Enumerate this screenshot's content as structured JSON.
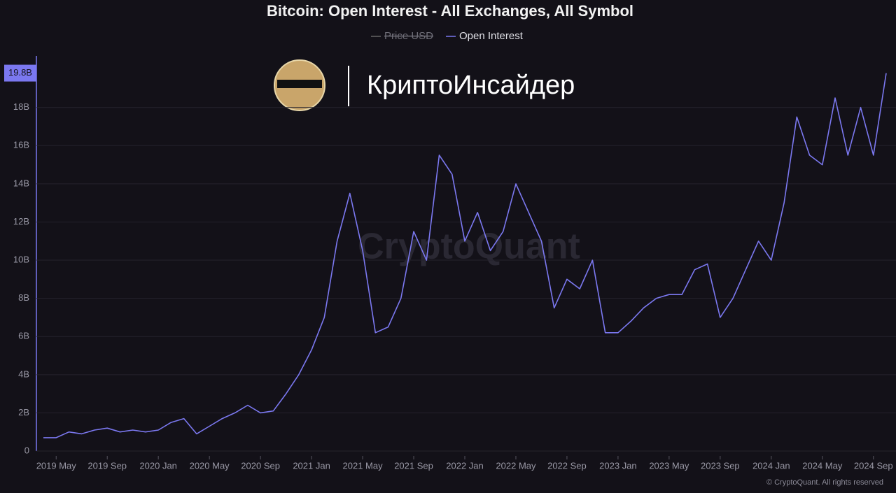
{
  "chart_data": {
    "type": "line",
    "title": "Bitcoin: Open Interest - All Exchanges, All Symbol",
    "watermark": "CryptoQuant",
    "brand": "КриптоИнсайдер",
    "footer": "© CryptoQuant. All rights reserved",
    "x": [
      "2019-04",
      "2019-05",
      "2019-06",
      "2019-07",
      "2019-08",
      "2019-09",
      "2019-10",
      "2019-11",
      "2019-12",
      "2020-01",
      "2020-02",
      "2020-03",
      "2020-04",
      "2020-05",
      "2020-06",
      "2020-07",
      "2020-08",
      "2020-09",
      "2020-10",
      "2020-11",
      "2020-12",
      "2021-01",
      "2021-02",
      "2021-03",
      "2021-04",
      "2021-05",
      "2021-06",
      "2021-07",
      "2021-08",
      "2021-09",
      "2021-10",
      "2021-11",
      "2021-12",
      "2022-01",
      "2022-02",
      "2022-03",
      "2022-04",
      "2022-05",
      "2022-06",
      "2022-07",
      "2022-08",
      "2022-09",
      "2022-10",
      "2022-11",
      "2022-12",
      "2023-01",
      "2023-02",
      "2023-03",
      "2023-04",
      "2023-05",
      "2023-06",
      "2023-07",
      "2023-08",
      "2023-09",
      "2023-10",
      "2023-11",
      "2023-12",
      "2024-01",
      "2024-02",
      "2024-03",
      "2024-04",
      "2024-05",
      "2024-06",
      "2024-07",
      "2024-08",
      "2024-09",
      "2024-10"
    ],
    "series": [
      {
        "name": "Price USD",
        "visible": false,
        "color": "#888888"
      },
      {
        "name": "Open Interest",
        "visible": true,
        "color": "#7b78f0",
        "values": [
          0.7,
          0.7,
          1.0,
          0.9,
          1.1,
          1.2,
          1.0,
          1.1,
          1.0,
          1.1,
          1.5,
          1.7,
          0.9,
          1.3,
          1.7,
          2.0,
          2.4,
          2.0,
          2.1,
          3.0,
          4.0,
          5.3,
          7.0,
          11.0,
          13.5,
          10.5,
          6.2,
          6.5,
          8.0,
          11.5,
          10.0,
          15.5,
          14.5,
          11.0,
          12.5,
          10.5,
          11.5,
          14.0,
          12.5,
          11.0,
          7.5,
          9.0,
          8.5,
          10.0,
          6.2,
          6.2,
          6.8,
          7.5,
          8.0,
          8.2,
          8.2,
          9.5,
          9.8,
          7.0,
          8.0,
          9.5,
          11.0,
          10.0,
          13.0,
          17.5,
          15.5,
          15.0,
          18.5,
          15.5,
          18.0,
          15.5,
          19.8
        ]
      }
    ],
    "xlim": [
      "2019-04",
      "2024-10"
    ],
    "xticks": [
      {
        "value": "2019-05",
        "label": "2019 May"
      },
      {
        "value": "2019-09",
        "label": "2019 Sep"
      },
      {
        "value": "2020-01",
        "label": "2020 Jan"
      },
      {
        "value": "2020-05",
        "label": "2020 May"
      },
      {
        "value": "2020-09",
        "label": "2020 Sep"
      },
      {
        "value": "2021-01",
        "label": "2021 Jan"
      },
      {
        "value": "2021-05",
        "label": "2021 May"
      },
      {
        "value": "2021-09",
        "label": "2021 Sep"
      },
      {
        "value": "2022-01",
        "label": "2022 Jan"
      },
      {
        "value": "2022-05",
        "label": "2022 May"
      },
      {
        "value": "2022-09",
        "label": "2022 Sep"
      },
      {
        "value": "2023-01",
        "label": "2023 Jan"
      },
      {
        "value": "2023-05",
        "label": "2023 May"
      },
      {
        "value": "2023-09",
        "label": "2023 Sep"
      },
      {
        "value": "2024-01",
        "label": "2024 Jan"
      },
      {
        "value": "2024-05",
        "label": "2024 May"
      },
      {
        "value": "2024-09",
        "label": "2024 Sep"
      }
    ],
    "ylim": [
      0,
      20.7
    ],
    "yticks": [
      0,
      {
        "value": 2,
        "label": "2B"
      },
      {
        "value": 4,
        "label": "4B"
      },
      {
        "value": 6,
        "label": "6B"
      },
      {
        "value": 8,
        "label": "8B"
      },
      {
        "value": 10,
        "label": "10B"
      },
      {
        "value": 12,
        "label": "12B"
      },
      {
        "value": 14,
        "label": "14B"
      },
      {
        "value": 16,
        "label": "16B"
      },
      {
        "value": 18,
        "label": "18B"
      }
    ],
    "current_value": {
      "value": 19.8,
      "label": "19.8B"
    },
    "grid": true
  }
}
